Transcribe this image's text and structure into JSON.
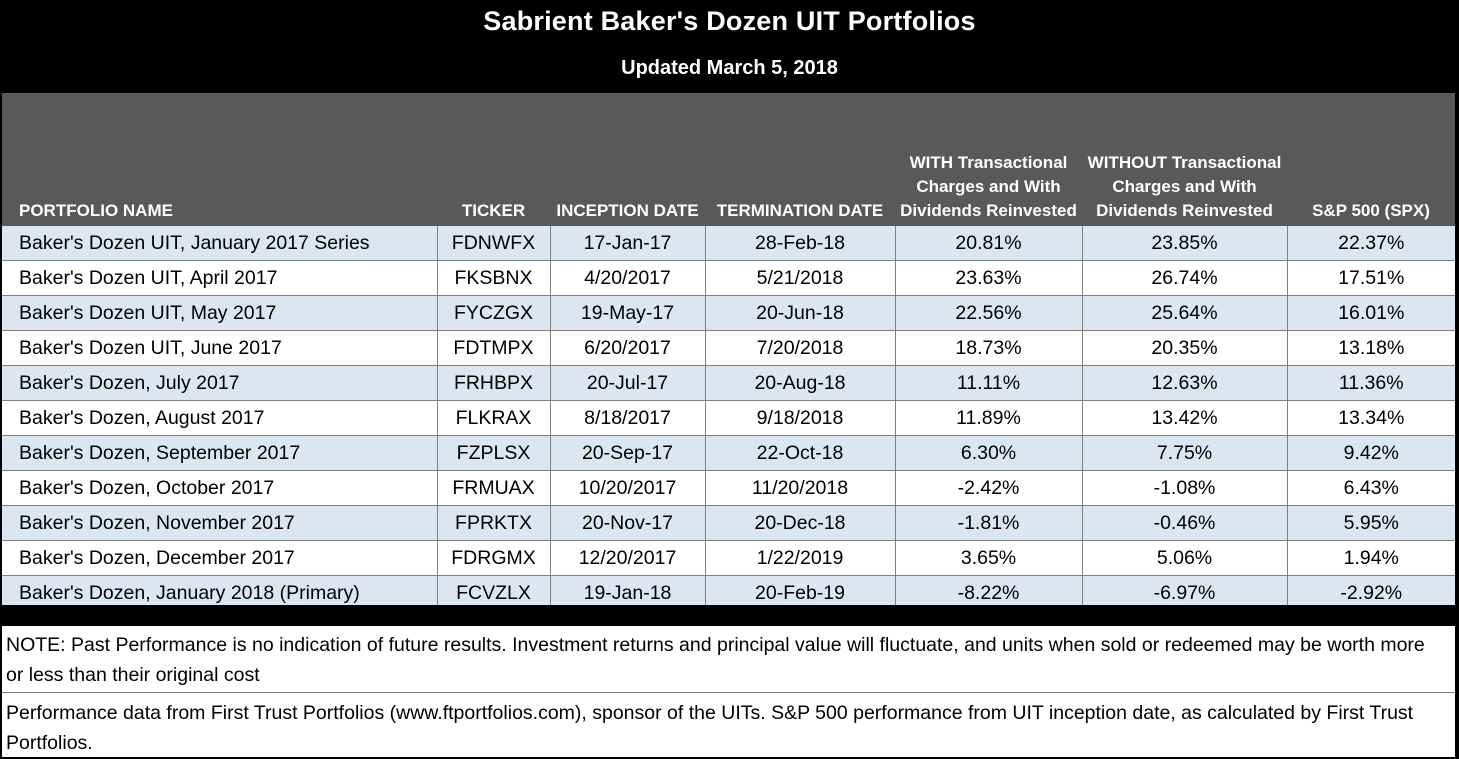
{
  "title": "Sabrient Baker's Dozen UIT Portfolios",
  "subtitle": "Updated March 5, 2018",
  "chart_data": {
    "type": "table",
    "columns": [
      "PORTFOLIO NAME",
      "TICKER",
      "INCEPTION DATE",
      "TERMINATION DATE",
      "WITH Transactional Charges and With Dividends Reinvested",
      "WITHOUT Transactional Charges and With Dividends Reinvested",
      "S&P 500  (SPX)"
    ],
    "rows": [
      [
        "Baker's Dozen UIT, January 2017 Series",
        "FDNWFX",
        "17-Jan-17",
        "28-Feb-18",
        "20.81%",
        "23.85%",
        "22.37%"
      ],
      [
        "Baker's Dozen UIT, April 2017",
        "FKSBNX",
        "4/20/2017",
        "5/21/2018",
        "23.63%",
        "26.74%",
        "17.51%"
      ],
      [
        "Baker's Dozen UIT, May 2017",
        "FYCZGX",
        "19-May-17",
        "20-Jun-18",
        "22.56%",
        "25.64%",
        "16.01%"
      ],
      [
        "Baker's Dozen UIT, June  2017",
        "FDTMPX",
        "6/20/2017",
        "7/20/2018",
        "18.73%",
        "20.35%",
        "13.18%"
      ],
      [
        "Baker's Dozen, July 2017",
        "FRHBPX",
        "20-Jul-17",
        "20-Aug-18",
        "11.11%",
        "12.63%",
        "11.36%"
      ],
      [
        "Baker's Dozen, August 2017",
        "FLKRAX",
        "8/18/2017",
        "9/18/2018",
        "11.89%",
        "13.42%",
        "13.34%"
      ],
      [
        "Baker's Dozen, September 2017",
        "FZPLSX",
        "20-Sep-17",
        "22-Oct-18",
        "6.30%",
        "7.75%",
        "9.42%"
      ],
      [
        "Baker's Dozen, October 2017",
        "FRMUAX",
        "10/20/2017",
        "11/20/2018",
        "-2.42%",
        "-1.08%",
        "6.43%"
      ],
      [
        "Baker's Dozen, November 2017",
        "FPRKTX",
        "20-Nov-17",
        "20-Dec-18",
        "-1.81%",
        "-0.46%",
        "5.95%"
      ],
      [
        "Baker's Dozen, December 2017",
        "FDRGMX",
        "12/20/2017",
        "1/22/2019",
        "3.65%",
        "5.06%",
        "1.94%"
      ],
      [
        "Baker's Dozen, January 2018 (Primary)",
        "FCVZLX",
        "19-Jan-18",
        "20-Feb-19",
        "-8.22%",
        "-6.97%",
        "-2.92%"
      ]
    ]
  },
  "notes": {
    "note1": "NOTE:  Past Performance is no indication of future results. Investment returns and principal value will fluctuate, and units when sold or redeemed may be worth more or less than their original cost",
    "note2": "Performance data from First Trust Portfolios (www.ftportfolios.com), sponsor of the UITs. S&P 500 performance from UIT inception date, as calculated by First Trust Portfolios."
  },
  "colors": {
    "header_bg": "#595959",
    "alt_row_bg": "#dce6f1",
    "title_bg": "#000000"
  }
}
